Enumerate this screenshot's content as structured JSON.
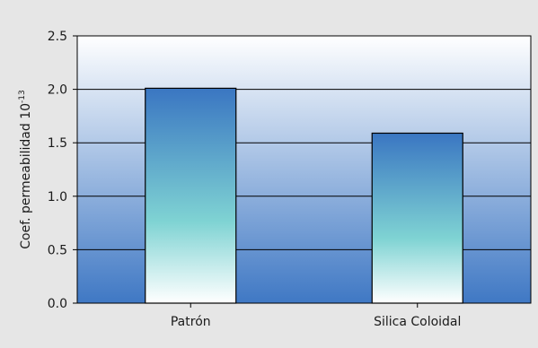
{
  "chart_data": {
    "type": "bar",
    "title": "",
    "xlabel": "",
    "ylabel": "Coef. permeabilidad 10",
    "ylabel_exponent": "-13",
    "categories": [
      "Patrón",
      "Silica Coloidal"
    ],
    "values": [
      2.01,
      1.59
    ],
    "ylim": [
      0,
      2.5
    ],
    "yticks": [
      "0.0",
      "0.5",
      "1.0",
      "1.5",
      "2.0",
      "2.5"
    ],
    "grid": true,
    "legend": "none",
    "colors": {
      "background": "#e6e6e6",
      "plot_top": "#ffffff",
      "plot_bottom": "#3f78c4",
      "bar_top": "#3a76c2",
      "bar_mid": "#7fd3d3",
      "bar_bottom": "#ffffff",
      "line": "#000000"
    }
  }
}
